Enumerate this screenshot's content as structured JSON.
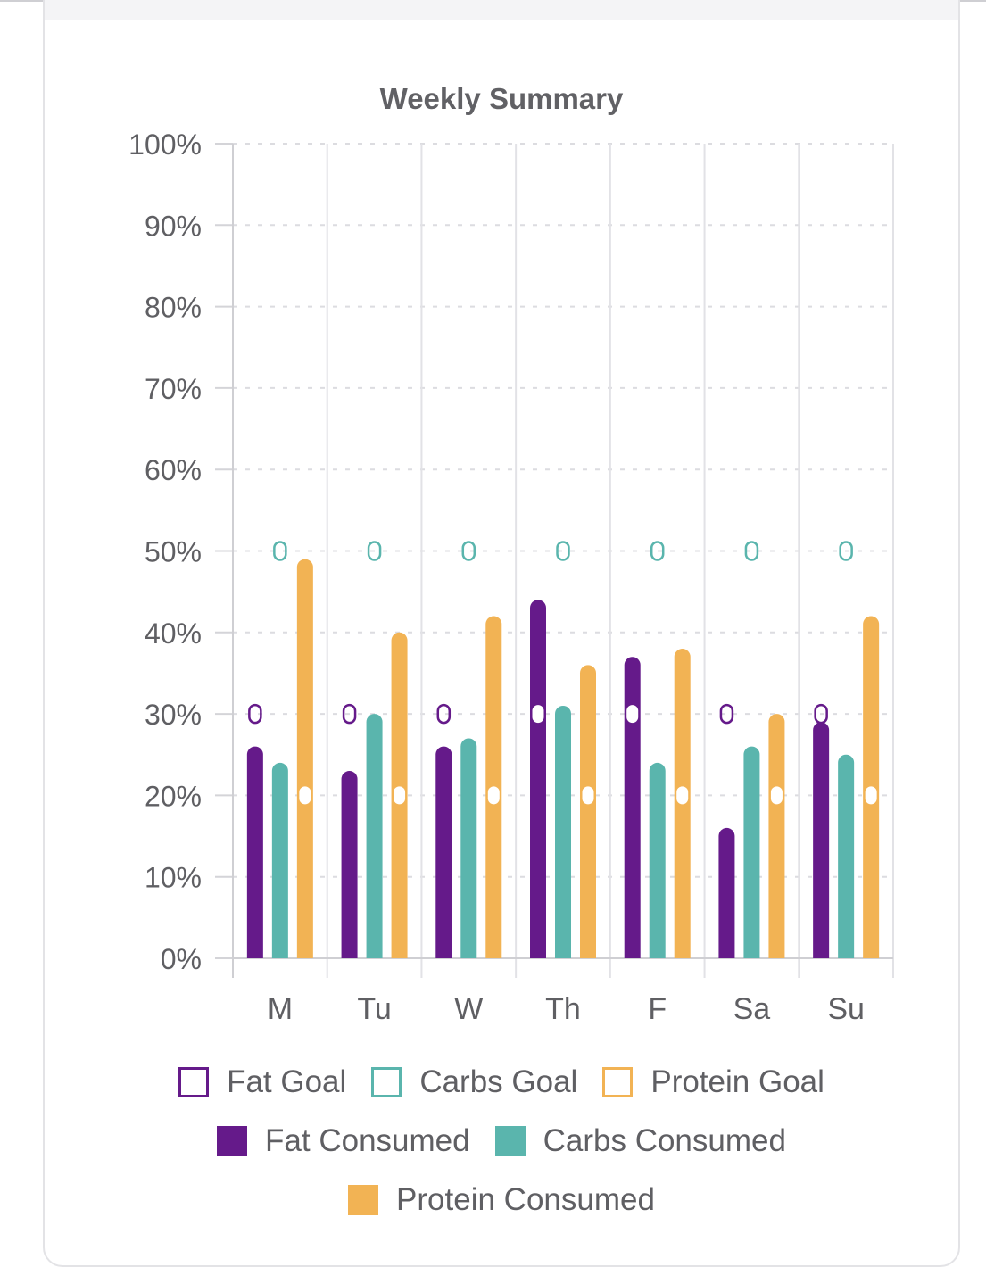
{
  "chart_data": {
    "type": "bar",
    "title": "Weekly Summary",
    "categories": [
      "M",
      "Tu",
      "W",
      "Th",
      "F",
      "Sa",
      "Su"
    ],
    "ylim": [
      0,
      100
    ],
    "ytick_values": [
      0,
      10,
      20,
      30,
      40,
      50,
      60,
      70,
      80,
      90,
      100
    ],
    "ytick_labels": [
      "0%",
      "10%",
      "20%",
      "30%",
      "40%",
      "50%",
      "60%",
      "70%",
      "80%",
      "90%",
      "100%"
    ],
    "grid": true,
    "legend_position": "bottom",
    "series": [
      {
        "name": "Fat Consumed",
        "color": "#651a8a",
        "values": [
          26,
          23,
          26,
          44,
          37,
          16,
          29
        ]
      },
      {
        "name": "Carbs Consumed",
        "color": "#5ab5ad",
        "values": [
          24,
          30,
          27,
          31,
          24,
          26,
          25
        ]
      },
      {
        "name": "Protein Consumed",
        "color": "#f2b354",
        "values": [
          49,
          40,
          42,
          36,
          38,
          30,
          42
        ]
      }
    ],
    "goals": [
      {
        "name": "Fat Goal",
        "color": "#651a8a",
        "values": [
          30,
          30,
          30,
          30,
          30,
          30,
          30
        ]
      },
      {
        "name": "Carbs Goal",
        "color": "#5ab5ad",
        "values": [
          50,
          50,
          50,
          50,
          50,
          50,
          50
        ]
      },
      {
        "name": "Protein Goal",
        "color": "#f2b354",
        "values": [
          20,
          20,
          20,
          20,
          20,
          20,
          20
        ]
      }
    ]
  },
  "legend": {
    "rows": [
      [
        {
          "label": "Fat Goal",
          "color": "#651a8a",
          "style": "goal"
        },
        {
          "label": "Carbs Goal",
          "color": "#5ab5ad",
          "style": "goal"
        },
        {
          "label": "Protein Goal",
          "color": "#f2b354",
          "style": "goal"
        }
      ],
      [
        {
          "label": "Fat Consumed",
          "color": "#651a8a",
          "style": "consumed"
        },
        {
          "label": "Carbs Consumed",
          "color": "#5ab5ad",
          "style": "consumed"
        }
      ],
      [
        {
          "label": "Protein Consumed",
          "color": "#f2b354",
          "style": "consumed"
        }
      ]
    ]
  }
}
